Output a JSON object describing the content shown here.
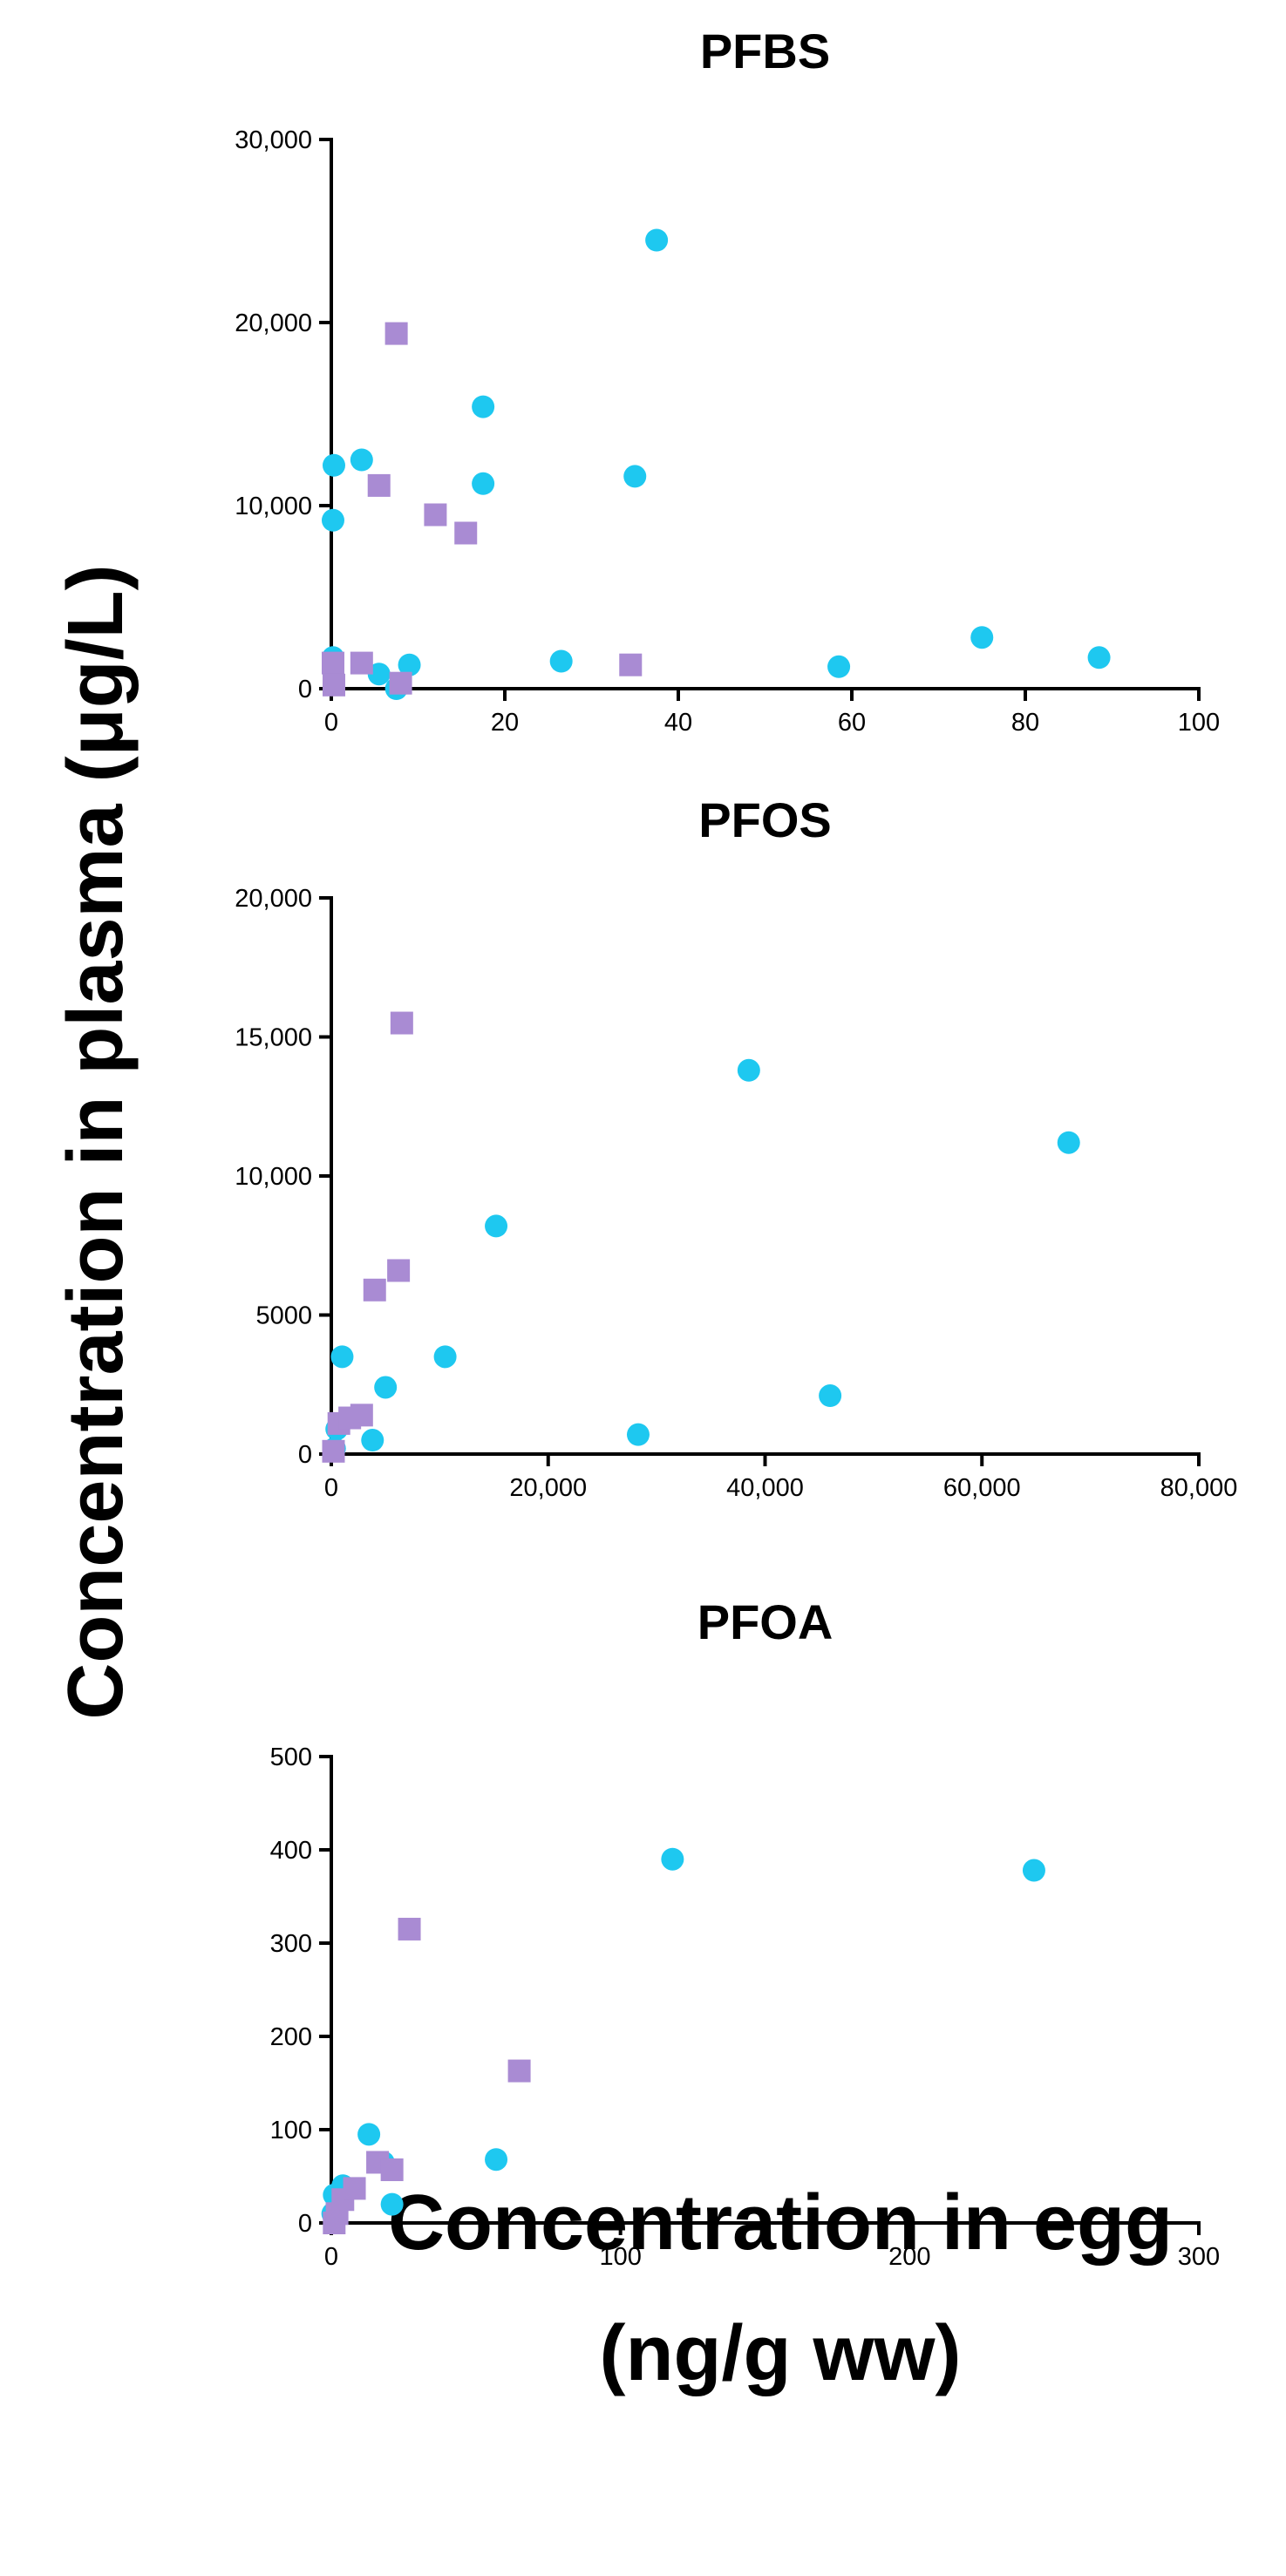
{
  "colors": {
    "circle": "#1ec8f0",
    "square": "#a98bd3",
    "axis": "#000000"
  },
  "ylabel": "Concentration in plasma  (μg/L)",
  "xlabel_line1": "Concentration in egg",
  "xlabel_line2": "(ng/g ww)",
  "chart_data": [
    {
      "type": "scatter",
      "title": "PFBS",
      "xlim": [
        0,
        100
      ],
      "ylim": [
        0,
        30000
      ],
      "xticks": [
        0,
        20,
        40,
        60,
        80,
        100
      ],
      "xtick_labels": [
        "0",
        "20",
        "40",
        "60",
        "80",
        "100"
      ],
      "yticks": [
        0,
        10000,
        20000,
        30000
      ],
      "ytick_labels": [
        "0",
        "10,000",
        "20,000",
        "30,000"
      ],
      "series": [
        {
          "name": "circles",
          "marker": "circle",
          "points": [
            [
              0.3,
              12200
            ],
            [
              0.2,
              9200
            ],
            [
              3.5,
              12500
            ],
            [
              7.5,
              0
            ],
            [
              9,
              1300
            ],
            [
              5.5,
              800
            ],
            [
              17.5,
              15400
            ],
            [
              17.5,
              11200
            ],
            [
              26.5,
              1500
            ],
            [
              35,
              11600
            ],
            [
              37.5,
              24500
            ],
            [
              58.5,
              1200
            ],
            [
              75,
              2800
            ],
            [
              88.5,
              1700
            ],
            [
              0.2,
              1700
            ]
          ]
        },
        {
          "name": "squares",
          "marker": "square",
          "points": [
            [
              0.2,
              1400
            ],
            [
              0.3,
              200
            ],
            [
              3.5,
              1400
            ],
            [
              5.5,
              11100
            ],
            [
              7.5,
              19400
            ],
            [
              8,
              300
            ],
            [
              12,
              9500
            ],
            [
              15.5,
              8500
            ],
            [
              34.5,
              1300
            ]
          ]
        }
      ]
    },
    {
      "type": "scatter",
      "title": "PFOS",
      "xlim": [
        0,
        80000
      ],
      "ylim": [
        0,
        20000
      ],
      "xticks": [
        0,
        20000,
        40000,
        60000,
        80000
      ],
      "xtick_labels": [
        "0",
        "20,000",
        "40,000",
        "60,000",
        "80,000"
      ],
      "yticks": [
        0,
        5000,
        10000,
        15000,
        20000
      ],
      "ytick_labels": [
        "0",
        "5000",
        "10,000",
        "15,000",
        "20,000"
      ],
      "series": [
        {
          "name": "circles",
          "marker": "circle",
          "points": [
            [
              300,
              200
            ],
            [
              1000,
              3500
            ],
            [
              3800,
              500
            ],
            [
              5000,
              2400
            ],
            [
              10500,
              3500
            ],
            [
              15200,
              8200
            ],
            [
              28300,
              700
            ],
            [
              38500,
              13800
            ],
            [
              46000,
              2100
            ],
            [
              68000,
              11200
            ],
            [
              500,
              900
            ]
          ]
        },
        {
          "name": "squares",
          "marker": "square",
          "points": [
            [
              200,
              100
            ],
            [
              700,
              1100
            ],
            [
              1700,
              1300
            ],
            [
              2800,
              1400
            ],
            [
              4000,
              5900
            ],
            [
              6200,
              6600
            ],
            [
              6500,
              15500
            ]
          ]
        }
      ]
    },
    {
      "type": "scatter",
      "title": "PFOA",
      "xlim": [
        0,
        300
      ],
      "ylim": [
        0,
        500
      ],
      "xticks": [
        0,
        100,
        200,
        300
      ],
      "xtick_labels": [
        "0",
        "100",
        "200",
        "300"
      ],
      "yticks": [
        0,
        100,
        200,
        300,
        400,
        500
      ],
      "ytick_labels": [
        "0",
        "100",
        "200",
        "300",
        "400",
        "500"
      ],
      "series": [
        {
          "name": "circles",
          "marker": "circle",
          "points": [
            [
              0.5,
              10
            ],
            [
              2,
              20
            ],
            [
              4,
              40
            ],
            [
              13,
              95
            ],
            [
              18,
              65
            ],
            [
              21,
              20
            ],
            [
              57,
              68
            ],
            [
              118,
              390
            ],
            [
              243,
              378
            ],
            [
              1,
              30
            ]
          ]
        },
        {
          "name": "squares",
          "marker": "square",
          "points": [
            [
              1,
              0
            ],
            [
              2,
              10
            ],
            [
              4,
              25
            ],
            [
              8,
              37
            ],
            [
              16,
              65
            ],
            [
              21,
              57
            ],
            [
              27,
              315
            ],
            [
              65,
              163
            ]
          ]
        }
      ]
    }
  ]
}
